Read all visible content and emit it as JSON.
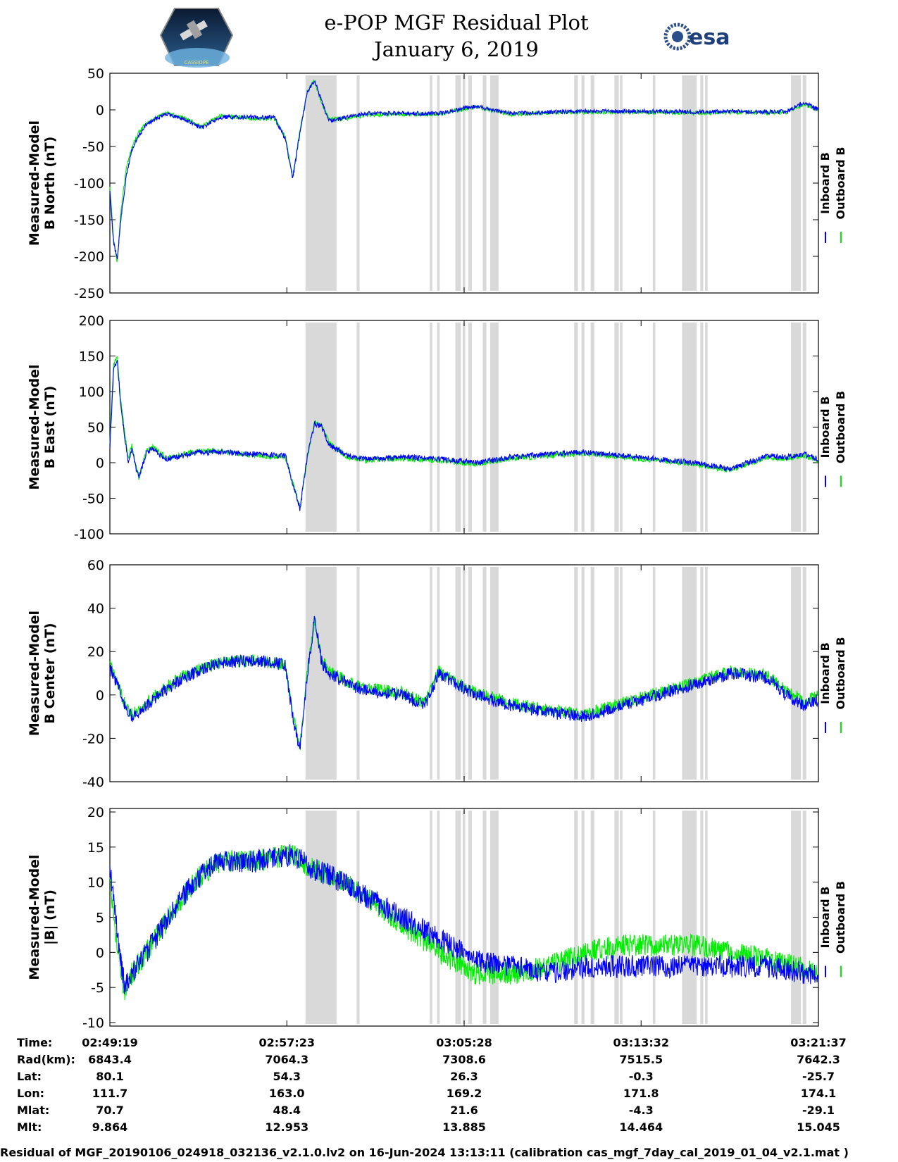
{
  "header": {
    "title": "e-POP MGF Residual Plot",
    "date": "January 6, 2019",
    "left_logo": "cassiope-mission-logo",
    "left_logo_text": "CASSIOPE",
    "right_logo": "esa-logo",
    "right_logo_text": "esa"
  },
  "colors": {
    "inboard": "#0000ff",
    "outboard": "#00ee00",
    "gap": "#d9d9d9"
  },
  "legend": {
    "inboard": "Inboard B",
    "outboard": "Outboard B"
  },
  "chart_data": [
    {
      "type": "line",
      "ylabel": [
        "Measured-Model",
        "B North (nT)"
      ],
      "ylim": [
        -250,
        50
      ],
      "yticks": [
        50,
        0,
        -50,
        -100,
        -150,
        -200,
        -250
      ],
      "x_range_s": [
        0,
        1938
      ],
      "series": [
        {
          "name": "Inboard B",
          "color": "#0000ff",
          "x": [
            0,
            10,
            20,
            30,
            45,
            60,
            80,
            100,
            150,
            200,
            250,
            300,
            400,
            450,
            480,
            500,
            520,
            540,
            560,
            580,
            600,
            650,
            700,
            800,
            900,
            1000,
            1100,
            1200,
            1300,
            1400,
            1500,
            1600,
            1700,
            1800,
            1850,
            1900,
            1938
          ],
          "y": [
            -110,
            -180,
            -205,
            -150,
            -90,
            -55,
            -35,
            -20,
            -5,
            -12,
            -25,
            -10,
            -10,
            -10,
            -40,
            -95,
            -30,
            25,
            40,
            10,
            -15,
            -10,
            -5,
            -5,
            -5,
            5,
            -5,
            -3,
            -2,
            -2,
            -2,
            -3,
            -2,
            -3,
            -2,
            10,
            0
          ]
        },
        {
          "name": "Outboard B",
          "color": "#00ee00",
          "x": [
            0,
            10,
            20,
            30,
            45,
            60,
            80,
            100,
            150,
            200,
            250,
            300,
            400,
            450,
            480,
            500,
            520,
            540,
            560,
            580,
            600,
            650,
            700,
            800,
            900,
            1000,
            1100,
            1200,
            1300,
            1400,
            1500,
            1600,
            1700,
            1800,
            1850,
            1900,
            1938
          ],
          "y": [
            -105,
            -175,
            -208,
            -140,
            -80,
            -50,
            -30,
            -18,
            -4,
            -10,
            -23,
            -8,
            -12,
            -12,
            -38,
            -92,
            -28,
            26,
            40,
            8,
            -13,
            -12,
            -7,
            -6,
            -6,
            4,
            -6,
            -4,
            -3,
            -3,
            -3,
            -4,
            -3,
            -4,
            -3,
            8,
            -1
          ]
        }
      ]
    },
    {
      "type": "line",
      "ylabel": [
        "Measured-Model",
        "B East (nT)"
      ],
      "ylim": [
        -100,
        200
      ],
      "yticks": [
        200,
        150,
        100,
        50,
        0,
        -50,
        -100
      ],
      "x_range_s": [
        0,
        1938
      ],
      "series": [
        {
          "name": "Inboard B",
          "color": "#0000ff",
          "x": [
            0,
            10,
            20,
            30,
            40,
            50,
            60,
            70,
            80,
            100,
            120,
            140,
            160,
            200,
            250,
            300,
            400,
            480,
            500,
            520,
            540,
            560,
            580,
            600,
            650,
            700,
            800,
            900,
            1000,
            1100,
            1200,
            1300,
            1400,
            1500,
            1600,
            1650,
            1700,
            1800,
            1850,
            1900,
            1938
          ],
          "y": [
            20,
            130,
            145,
            80,
            40,
            0,
            20,
            -5,
            -20,
            15,
            20,
            10,
            5,
            10,
            15,
            15,
            12,
            10,
            -30,
            -65,
            10,
            55,
            50,
            25,
            10,
            5,
            8,
            5,
            0,
            8,
            12,
            15,
            10,
            5,
            0,
            -5,
            -8,
            10,
            8,
            12,
            5
          ]
        },
        {
          "name": "Outboard B",
          "color": "#00ee00",
          "x": [
            0,
            10,
            20,
            30,
            40,
            50,
            60,
            70,
            80,
            100,
            120,
            140,
            160,
            200,
            250,
            300,
            400,
            480,
            500,
            520,
            540,
            560,
            580,
            600,
            650,
            700,
            800,
            900,
            1000,
            1100,
            1200,
            1300,
            1400,
            1500,
            1600,
            1650,
            1700,
            1800,
            1850,
            1900,
            1938
          ],
          "y": [
            25,
            140,
            150,
            85,
            45,
            5,
            25,
            -3,
            -22,
            18,
            22,
            12,
            7,
            12,
            17,
            16,
            10,
            8,
            -28,
            -62,
            8,
            57,
            52,
            27,
            8,
            3,
            6,
            3,
            -2,
            6,
            10,
            13,
            8,
            3,
            -2,
            -7,
            -10,
            8,
            6,
            10,
            3
          ]
        }
      ]
    },
    {
      "type": "line",
      "ylabel": [
        "Measured-Model",
        "B Center (nT)"
      ],
      "ylim": [
        -40,
        60
      ],
      "yticks": [
        60,
        40,
        20,
        0,
        -20,
        -40
      ],
      "x_range_s": [
        0,
        1938
      ],
      "series": [
        {
          "name": "Inboard B",
          "color": "#0000ff",
          "x": [
            0,
            20,
            40,
            60,
            100,
            150,
            200,
            300,
            400,
            480,
            500,
            520,
            540,
            560,
            580,
            600,
            650,
            700,
            800,
            860,
            900,
            1000,
            1100,
            1200,
            1300,
            1400,
            1500,
            1600,
            1700,
            1800,
            1850,
            1900,
            1938
          ],
          "y": [
            12,
            5,
            -5,
            -10,
            -5,
            2,
            8,
            15,
            16,
            14,
            -10,
            -25,
            10,
            35,
            15,
            10,
            5,
            2,
            0,
            -5,
            10,
            0,
            -5,
            -8,
            -10,
            -5,
            0,
            5,
            10,
            8,
            0,
            -5,
            -2
          ]
        },
        {
          "name": "Outboard B",
          "color": "#00ee00",
          "x": [
            0,
            20,
            40,
            60,
            100,
            150,
            200,
            300,
            400,
            480,
            500,
            520,
            540,
            560,
            580,
            600,
            650,
            700,
            800,
            860,
            900,
            1000,
            1100,
            1200,
            1300,
            1400,
            1500,
            1600,
            1700,
            1800,
            1850,
            1900,
            1938
          ],
          "y": [
            14,
            6,
            -4,
            -9,
            -4,
            3,
            9,
            15,
            16,
            14,
            -9,
            -24,
            11,
            35,
            16,
            11,
            6,
            3,
            1,
            -4,
            11,
            1,
            -4,
            -7,
            -9,
            -4,
            1,
            6,
            11,
            9,
            2,
            -3,
            0
          ]
        }
      ]
    },
    {
      "type": "line",
      "ylabel": [
        "Measured-Model",
        "|B| (nT)"
      ],
      "ylim": [
        -10.5,
        20.5
      ],
      "yticks": [
        20,
        15,
        10,
        5,
        0,
        -5,
        -10
      ],
      "x_range_s": [
        0,
        1938
      ],
      "series": [
        {
          "name": "Inboard B",
          "color": "#0000ff",
          "x": [
            0,
            20,
            40,
            60,
            100,
            150,
            200,
            250,
            300,
            400,
            500,
            550,
            600,
            700,
            800,
            900,
            1000,
            1100,
            1200,
            1300,
            1400,
            1500,
            1600,
            1700,
            1800,
            1900,
            1938
          ],
          "y": [
            12,
            3,
            -5,
            -3,
            0,
            4,
            8,
            11,
            13,
            13,
            14,
            12,
            11,
            8,
            5,
            2,
            -1,
            -2,
            -3,
            -2,
            -2,
            -2,
            -2,
            -2,
            -2,
            -3,
            -3
          ]
        },
        {
          "name": "Outboard B",
          "color": "#00ee00",
          "x": [
            0,
            20,
            40,
            60,
            100,
            150,
            200,
            250,
            300,
            400,
            500,
            550,
            600,
            700,
            800,
            900,
            1000,
            1100,
            1200,
            1300,
            1400,
            1500,
            1600,
            1700,
            1800,
            1900,
            1938
          ],
          "y": [
            10,
            1,
            -6,
            -3,
            0,
            4,
            8,
            11,
            13,
            13,
            14,
            12,
            11,
            8,
            4,
            0,
            -3,
            -3,
            -2,
            0,
            1,
            1,
            1,
            0,
            -1,
            -2,
            -3
          ]
        }
      ]
    }
  ],
  "gaps_s": [
    [
      535,
      620
    ],
    [
      675,
      683
    ],
    [
      875,
      882
    ],
    [
      895,
      902
    ],
    [
      945,
      960
    ],
    [
      965,
      972
    ],
    [
      980,
      990
    ],
    [
      1020,
      1030
    ],
    [
      1040,
      1063
    ],
    [
      1270,
      1280
    ],
    [
      1290,
      1298
    ],
    [
      1315,
      1325
    ],
    [
      1380,
      1392
    ],
    [
      1395,
      1402
    ],
    [
      1485,
      1492
    ],
    [
      1565,
      1605
    ],
    [
      1615,
      1623
    ],
    [
      1628,
      1635
    ],
    [
      1863,
      1890
    ],
    [
      1895,
      1905
    ]
  ],
  "x_ticks_s": [
    0,
    484,
    969,
    1453,
    1938
  ],
  "info_table": {
    "labels": [
      "Time:",
      "Rad(km):",
      "Lat:",
      "Lon:",
      "Mlat:",
      "Mlt:"
    ],
    "columns": [
      [
        "02:49:19",
        "6843.4",
        "80.1",
        "111.7",
        "70.7",
        "9.864"
      ],
      [
        "02:57:23",
        "7064.3",
        "54.3",
        "163.0",
        "48.4",
        "12.953"
      ],
      [
        "03:05:28",
        "7308.6",
        "26.3",
        "169.2",
        "21.6",
        "13.885"
      ],
      [
        "03:13:32",
        "7515.5",
        "-0.3",
        "171.8",
        "-4.3",
        "14.464"
      ],
      [
        "03:21:37",
        "7642.3",
        "-25.7",
        "174.1",
        "-29.1",
        "15.045"
      ]
    ]
  },
  "footer": "Residual of MGF_20190106_024918_032136_v2.1.0.lv2 on 16-Jun-2024 13:13:11 (calibration cas_mgf_7day_cal_2019_01_04_v2.1.mat )"
}
